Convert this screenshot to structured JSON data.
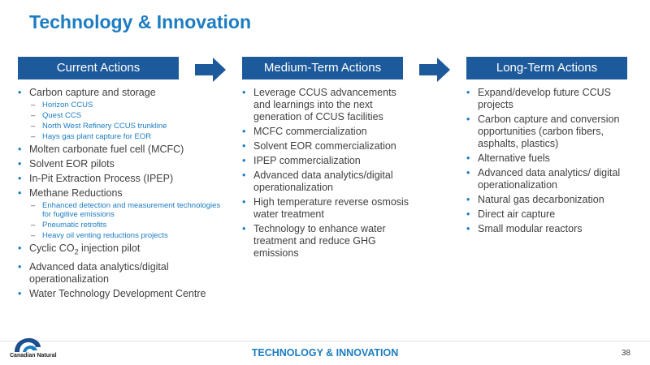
{
  "title": "Technology & Innovation",
  "columns": {
    "current": {
      "header": "Current Actions",
      "ccs": "Carbon capture and storage",
      "ccs_subs": [
        "Horizon CCUS",
        "Quest CCS",
        "North West Refinery CCUS trunkline",
        "Hays gas plant capture for EOR"
      ],
      "mcfc": "Molten carbonate fuel cell (MCFC)",
      "solvent": "Solvent EOR pilots",
      "ipep": "In-Pit Extraction Process (IPEP)",
      "methane": "Methane Reductions",
      "methane_subs": [
        "Enhanced detection and measurement technologies for fugitive emissions",
        "Pneumatic retrofits",
        "Heavy oil venting reductions projects"
      ],
      "cyclic_pre": "Cyclic CO",
      "cyclic_sub": "2",
      "cyclic_post": " injection pilot",
      "analytics": "Advanced data analytics/digital operationalization",
      "water": "Water Technology Development Centre"
    },
    "medium": {
      "header": "Medium-Term Actions",
      "items": [
        "Leverage CCUS advancements and learnings into the next generation of CCUS facilities",
        "MCFC commercialization",
        "Solvent EOR commercialization",
        "IPEP commercialization",
        "Advanced data analytics/digital operationalization",
        "High temperature reverse osmosis water treatment",
        "Technology to enhance water treatment and reduce GHG emissions"
      ]
    },
    "long": {
      "header": "Long-Term Actions",
      "items": [
        "Expand/develop future CCUS projects",
        "Carbon capture and conversion opportunities (carbon fibers, asphalts, plastics)",
        "Alternative fuels",
        "Advanced data analytics/ digital operationalization",
        "Natural gas decarbonization",
        "Direct air capture",
        "Small modular reactors"
      ]
    }
  },
  "footer": {
    "section": "TECHNOLOGY & INNOVATION",
    "page": "38",
    "logo_text": "Canadian Natural"
  },
  "colors": {
    "title": "#1c7cc2",
    "header_bg": "#1d5a9b",
    "arrow": "#1d5a9b",
    "sub_bullet_text": "#1c7cc2"
  }
}
